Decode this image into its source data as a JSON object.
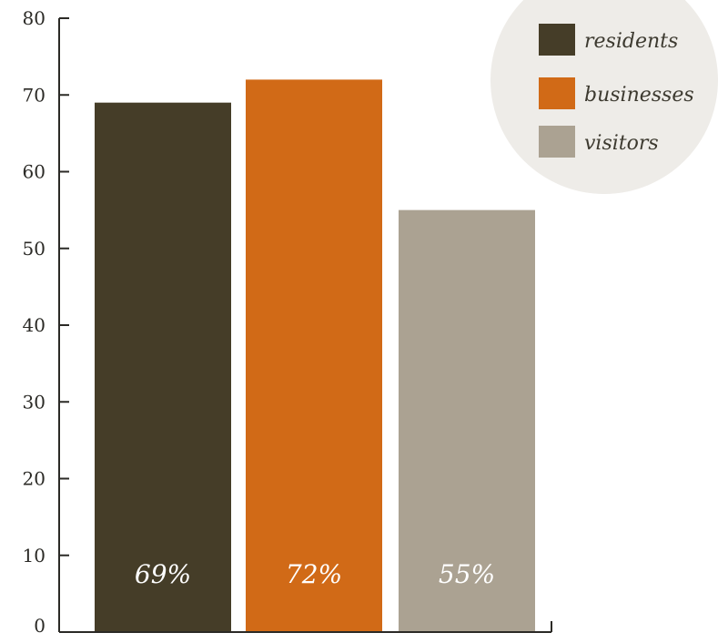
{
  "chart_data": {
    "type": "bar",
    "title": "",
    "xlabel": "",
    "ylabel": "",
    "ylim": [
      0,
      80
    ],
    "yticks": [
      0,
      10,
      20,
      30,
      40,
      50,
      60,
      70,
      80
    ],
    "grid": false,
    "legend_position": "top-right",
    "categories": [
      "residents",
      "businesses",
      "visitors"
    ],
    "values": [
      69,
      72,
      55
    ],
    "data_labels": [
      "69%",
      "72%",
      "55%"
    ],
    "colors": [
      "#453d28",
      "#d16a17",
      "#aba292"
    ],
    "legend_background": "#eeece8",
    "axis_color": "#2b2a26"
  }
}
